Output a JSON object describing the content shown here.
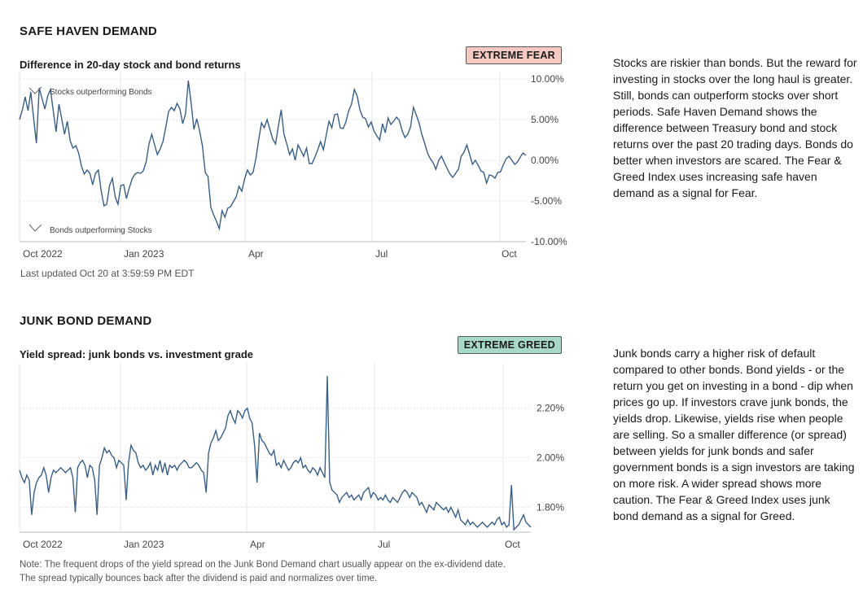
{
  "safe_haven": {
    "section_title": "SAFE HAVEN DEMAND",
    "chart_title": "Difference in 20-day stock and bond returns",
    "badge": "EXTREME FEAR",
    "annot_top": "Stocks outperforming Bonds",
    "annot_bottom": "Bonds outperforming Stocks",
    "last_updated": "Last updated Oct 20 at 3:59:59 PM EDT",
    "description": "Stocks are riskier than bonds. But the reward for investing in stocks over the long haul is greater. Still, bonds can outperform stocks over short periods. Safe Haven Demand shows the difference between Treasury bond and stock returns over the past 20 trading days. Bonds do better when investors are scared. The Fear & Greed Index uses increasing safe haven demand as a signal for Fear."
  },
  "junk_bond": {
    "section_title": "JUNK BOND DEMAND",
    "chart_title": "Yield spread: junk bonds vs. investment grade",
    "badge": "EXTREME GREED",
    "description": "Junk bonds carry a higher risk of default compared to other bonds. Bond yields - or the return you get on investing in a bond - dip when prices go up. If investors crave junk bonds, the yields drop. Likewise, yields rise when people are selling. So a smaller difference (or spread) between yields for junk bonds and safer government bonds is a sign investors are taking on more risk. A wider spread shows more caution. The Fear & Greed Index uses junk bond demand as a signal for Greed.",
    "note_line1": "Note: The frequent drops of the yield spread on the Junk Bond Demand chart usually appear on the ex-dividend date.",
    "note_line2": "The spread typically bounces back after the dividend is paid and normalizes over time."
  },
  "colors": {
    "line": "#3a5f85",
    "grid": "#e4e4e4",
    "fear": "#f6c9c2",
    "greed": "#a8d8c6"
  },
  "chart_data": [
    {
      "type": "line",
      "title": "Difference in 20-day stock and bond returns",
      "xlabel": "",
      "ylabel": "",
      "ylim": [
        -10,
        10
      ],
      "x_ticks": [
        "Oct 2022",
        "Jan 2023",
        "Apr",
        "Jul",
        "Oct"
      ],
      "y_ticks": [
        "10.00%",
        "5.00%",
        "0.00%",
        "-5.00%",
        "-10.00%"
      ],
      "series": [
        {
          "name": "Safe Haven Demand",
          "values": [
            5.0,
            6.2,
            7.8,
            6.1,
            8.4,
            5.2,
            2.1,
            8.9,
            7.6,
            6.3,
            7.9,
            8.7,
            6.0,
            3.5,
            6.9,
            5.1,
            3.2,
            4.8,
            2.4,
            1.5,
            1.8,
            0.9,
            -0.7,
            -1.7,
            -1.2,
            -1.6,
            -3.0,
            -1.6,
            -1.2,
            -3.7,
            -5.6,
            -5.4,
            -3.1,
            -2.2,
            -4.5,
            -5.4,
            -3.1,
            -3.0,
            -4.7,
            -3.4,
            -2.3,
            -1.7,
            -1.5,
            -1.6,
            -1.3,
            -0.2,
            2.0,
            3.2,
            1.9,
            0.7,
            1.4,
            2.3,
            4.1,
            6.0,
            6.5,
            6.1,
            7.0,
            6.3,
            4.5,
            5.7,
            9.8,
            7.0,
            3.8,
            5.1,
            3.6,
            1.8,
            -1.5,
            -2.0,
            -5.8,
            -6.7,
            -7.5,
            -8.4,
            -6.2,
            -7.0,
            -5.9,
            -5.7,
            -5.1,
            -4.5,
            -3.2,
            -3.8,
            -2.3,
            -1.2,
            -1.8,
            -1.5,
            0.2,
            2.5,
            4.6,
            4.0,
            5.0,
            3.8,
            2.6,
            2.0,
            4.2,
            6.2,
            3.2,
            2.0,
            0.7,
            1.4,
            0.0,
            1.9,
            1.2,
            0.5,
            1.5,
            -0.4,
            -0.4,
            0.4,
            1.3,
            2.3,
            1.3,
            3.1,
            4.8,
            4.0,
            5.6,
            5.7,
            4.0,
            3.9,
            4.7,
            6.1,
            6.9,
            8.7,
            7.9,
            6.2,
            5.3,
            5.1,
            4.1,
            4.7,
            3.6,
            3.0,
            2.5,
            4.5,
            3.4,
            5.2,
            4.4,
            4.8,
            5.3,
            4.9,
            3.6,
            2.8,
            3.2,
            4.1,
            6.5,
            5.6,
            4.6,
            3.2,
            2.1,
            0.9,
            0.2,
            -0.3,
            -1.1,
            0.0,
            0.5,
            -0.3,
            -1.0,
            -1.7,
            -2.1,
            -1.6,
            -1.1,
            0.5,
            1.0,
            1.9,
            0.7,
            -0.5,
            0.0,
            -0.6,
            -1.3,
            -1.5,
            -2.8,
            -1.8,
            -1.9,
            -2.2,
            -1.5,
            -1.4,
            -0.5,
            0.2,
            0.5,
            0.0,
            -0.5,
            -0.2,
            0.4,
            0.9,
            0.6
          ]
        }
      ]
    },
    {
      "type": "line",
      "title": "Yield spread: junk bonds vs. investment grade",
      "xlabel": "",
      "ylabel": "",
      "ylim": [
        1.7,
        2.35
      ],
      "x_ticks": [
        "Oct 2022",
        "Jan 2023",
        "Apr",
        "Jul",
        "Oct"
      ],
      "y_ticks": [
        "2.20%",
        "2.00%",
        "1.80%"
      ],
      "series": [
        {
          "name": "Yield Spread",
          "values": [
            1.95,
            1.92,
            1.9,
            1.93,
            1.91,
            1.77,
            1.86,
            1.9,
            1.92,
            1.93,
            1.96,
            1.93,
            1.86,
            1.92,
            1.95,
            1.94,
            1.95,
            1.96,
            1.95,
            1.94,
            1.95,
            1.96,
            1.92,
            1.78,
            1.96,
            1.98,
            1.99,
            1.97,
            1.92,
            1.97,
            1.96,
            1.91,
            1.77,
            1.97,
            2.0,
            2.04,
            2.02,
            2.03,
            2.01,
            2.0,
            1.96,
            1.99,
            1.98,
            1.97,
            1.83,
            1.98,
            2.05,
            2.03,
            2.02,
            1.98,
            1.96,
            1.97,
            1.95,
            1.96,
            1.98,
            1.93,
            1.97,
            1.95,
            1.99,
            1.94,
            1.98,
            1.93,
            1.97,
            1.96,
            1.97,
            1.95,
            1.97,
            1.98,
            1.99,
            1.98,
            1.96,
            1.96,
            1.97,
            1.98,
            1.97,
            1.95,
            1.94,
            1.86,
            2.02,
            2.06,
            2.08,
            2.11,
            2.07,
            2.08,
            2.1,
            2.12,
            2.17,
            2.19,
            2.16,
            2.14,
            2.19,
            2.18,
            2.16,
            2.19,
            2.2,
            2.16,
            2.14,
            2.05,
            1.9,
            2.1,
            2.07,
            2.06,
            2.04,
            2.02,
            2.01,
            2.03,
            1.97,
            1.98,
            1.96,
            1.99,
            1.97,
            1.95,
            1.96,
            1.98,
            1.99,
            1.98,
            2.0,
            1.96,
            1.97,
            1.95,
            1.94,
            1.96,
            1.95,
            1.93,
            1.96,
            1.94,
            1.92,
            2.33,
            1.9,
            1.87,
            1.86,
            1.85,
            1.82,
            1.84,
            1.85,
            1.86,
            1.84,
            1.85,
            1.83,
            1.84,
            1.85,
            1.83,
            1.86,
            1.87,
            1.88,
            1.84,
            1.86,
            1.85,
            1.83,
            1.84,
            1.83,
            1.85,
            1.83,
            1.82,
            1.84,
            1.83,
            1.82,
            1.84,
            1.86,
            1.87,
            1.86,
            1.84,
            1.86,
            1.85,
            1.84,
            1.81,
            1.82,
            1.8,
            1.78,
            1.81,
            1.8,
            1.79,
            1.82,
            1.81,
            1.8,
            1.79,
            1.8,
            1.78,
            1.8,
            1.78,
            1.76,
            1.79,
            1.75,
            1.74,
            1.73,
            1.75,
            1.73,
            1.74,
            1.73,
            1.72,
            1.73,
            1.74,
            1.73,
            1.72,
            1.73,
            1.74,
            1.73,
            1.75,
            1.76,
            1.73,
            1.74,
            1.72,
            1.73,
            1.89,
            1.71,
            1.72,
            1.73,
            1.75,
            1.77,
            1.74,
            1.73,
            1.72
          ]
        }
      ]
    }
  ]
}
